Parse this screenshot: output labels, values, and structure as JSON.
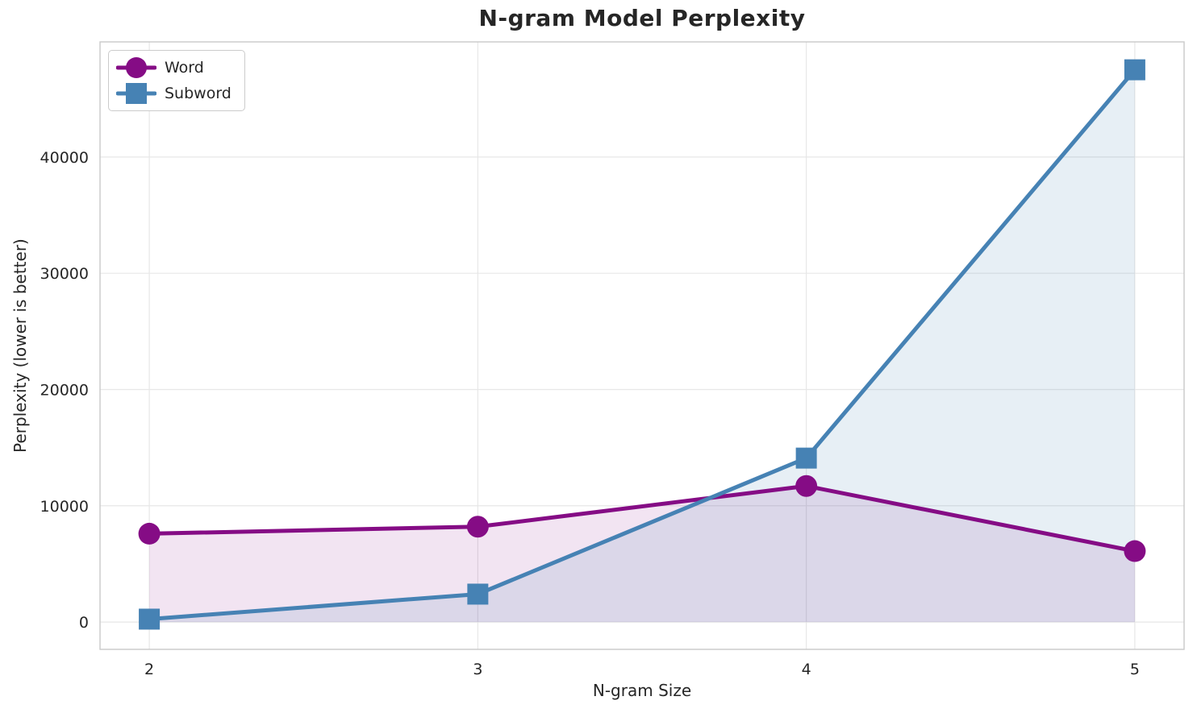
{
  "chart_data": {
    "type": "line",
    "title": "N-gram Model Perplexity",
    "xlabel": "N-gram Size",
    "ylabel": "Perplexity (lower is better)",
    "x": [
      2,
      3,
      4,
      5
    ],
    "series": [
      {
        "name": "Word",
        "values": [
          7600,
          8200,
          11700,
          6100
        ],
        "color": "#850c85",
        "marker": "circle",
        "fill_opacity": 0.11
      },
      {
        "name": "Subword",
        "values": [
          250,
          2400,
          14100,
          47500
        ],
        "color": "#4682B4",
        "marker": "square",
        "fill_opacity": 0.13
      }
    ],
    "xticks": {
      "values": [
        2,
        3,
        4,
        5
      ],
      "labels": [
        "2",
        "3",
        "4",
        "5"
      ]
    },
    "yticks": {
      "values": [
        0,
        10000,
        20000,
        30000,
        40000
      ],
      "labels": [
        "0",
        "10000",
        "20000",
        "30000",
        "40000"
      ]
    },
    "xlim": [
      1.85,
      5.15
    ],
    "ylim": [
      -2350,
      49900
    ],
    "grid": true,
    "area_baseline": 0,
    "legend_position": "upper left",
    "colors": {
      "grid": "#e7e7e7",
      "spine": "#c9c9c9",
      "text": "#262626",
      "background": "#ffffff"
    }
  }
}
